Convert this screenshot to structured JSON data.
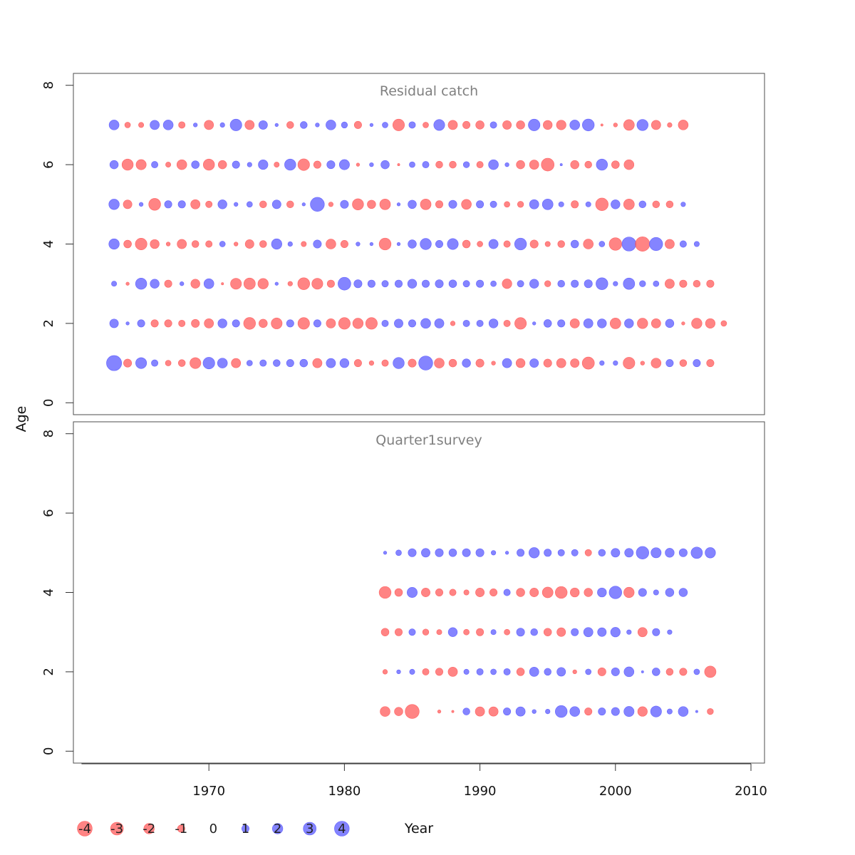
{
  "chart_data": {
    "type": "scatter",
    "subtype": "bubble",
    "xlabel": "Year",
    "ylabel": "Age",
    "x_ticks": [
      1970,
      1980,
      1990,
      2000,
      2010
    ],
    "y_ticks": [
      0,
      2,
      4,
      6,
      8
    ],
    "xlim": [
      1960,
      2011
    ],
    "ylim": [
      -0.3,
      8.3
    ],
    "colors": {
      "positive": "#5555ff",
      "negative": "#ff5555"
    },
    "legend": {
      "placement": "bottom",
      "values": [
        -4,
        -3,
        -2,
        -1,
        0,
        1,
        2,
        3,
        4
      ],
      "labels": [
        "-4",
        "-3",
        "-2",
        "-1",
        "0",
        "1",
        "2",
        "3",
        "4"
      ]
    },
    "panels": [
      {
        "title": "Residual catch",
        "years_start": 1963,
        "ages": [
          1,
          2,
          3,
          4,
          5,
          6,
          7
        ],
        "residuals": {
          "1": [
            4.2,
            -1.2,
            2.2,
            0.8,
            -0.6,
            -0.9,
            -2.2,
            2.5,
            1.8,
            -1.6,
            0.6,
            0.8,
            0.9,
            1.0,
            1.1,
            -1.6,
            1.6,
            1.5,
            -1.0,
            -0.4,
            -0.8,
            2.3,
            -1.2,
            3.6,
            -1.8,
            -1.1,
            1.3,
            -1.2,
            -0.3,
            1.6,
            -1.5,
            1.4,
            -1.2,
            -1.6,
            -1.4,
            -2.7,
            0.4,
            0.4,
            -2.5,
            -0.3,
            -1.8,
            1.0,
            -0.9,
            1.0,
            -1.0
          ],
          "2": [
            1.4,
            0.2,
            1.0,
            -1.0,
            -1.0,
            -0.8,
            -1.2,
            -1.6,
            1.5,
            1.0,
            -2.6,
            -1.3,
            -2.2,
            1.0,
            -2.5,
            1.0,
            -1.6,
            -2.5,
            -2.0,
            -2.5,
            0.8,
            1.4,
            1.0,
            1.8,
            1.6,
            -0.4,
            0.8,
            0.8,
            1.5,
            -0.8,
            -2.5,
            0.2,
            1.1,
            1.0,
            -1.6,
            1.6,
            1.5,
            -2.1,
            1.5,
            -2.0,
            -1.6,
            1.3,
            -0.2,
            -2.0,
            -1.7,
            -0.6
          ],
          "3": [
            0.5,
            -0.2,
            2.3,
            1.5,
            -1.0,
            0.3,
            -1.5,
            1.8,
            -0.1,
            -2.2,
            -2.4,
            -2.0,
            0.2,
            -0.4,
            -2.6,
            -2.2,
            -1.0,
            3.0,
            1.2,
            1.0,
            0.8,
            1.0,
            1.5,
            1.0,
            1.2,
            1.1,
            0.8,
            1.0,
            0.6,
            -1.7,
            0.8,
            1.5,
            -0.7,
            0.9,
            1.0,
            1.2,
            2.6,
            0.4,
            2.4,
            0.7,
            0.6,
            -1.6,
            -1.0,
            -0.9,
            -1.0
          ],
          "4": [
            2.0,
            -1.1,
            -2.5,
            -1.5,
            -0.3,
            -1.6,
            -0.9,
            -0.8,
            0.6,
            -0.3,
            -1.4,
            -0.9,
            2.0,
            0.4,
            -0.5,
            1.2,
            -1.8,
            -1.0,
            0.3,
            0.2,
            -2.6,
            0.2,
            1.3,
            2.3,
            1.0,
            2.2,
            -1.1,
            -0.6,
            1.6,
            -0.8,
            2.6,
            -1.2,
            -0.5,
            -0.9,
            1.1,
            -1.8,
            0.6,
            -2.9,
            3.6,
            -3.8,
            3.2,
            -1.6,
            0.8,
            0.5
          ],
          "5": [
            2.0,
            -1.4,
            0.3,
            -2.6,
            1.0,
            1.0,
            -1.6,
            -0.8,
            1.5,
            0.3,
            0.6,
            -0.9,
            1.4,
            -0.9,
            0.2,
            3.6,
            -0.4,
            1.2,
            -2.3,
            -1.3,
            -2.1,
            0.2,
            1.3,
            -2.1,
            -1.0,
            1.2,
            -1.8,
            1.0,
            0.8,
            -0.6,
            -0.7,
            1.6,
            2.1,
            0.5,
            -1.0,
            0.5,
            -2.9,
            1.5,
            -2.1,
            0.9,
            -0.9,
            -0.9,
            0.4
          ],
          "6": [
            1.3,
            -2.3,
            -1.9,
            0.8,
            -0.5,
            -1.8,
            1.1,
            -2.3,
            -1.3,
            1.0,
            0.4,
            1.7,
            -0.5,
            2.3,
            -2.5,
            -1.0,
            1.2,
            1.9,
            -0.2,
            0.3,
            1.3,
            -0.1,
            0.6,
            0.8,
            -0.9,
            -0.9,
            0.7,
            -0.8,
            1.8,
            0.3,
            -1.3,
            -1.6,
            -3.0,
            0.1,
            -1.3,
            -0.9,
            2.3,
            -1.1,
            -1.8
          ],
          "7": [
            1.8,
            -0.6,
            -0.5,
            1.6,
            1.8,
            -0.8,
            0.3,
            -1.6,
            0.4,
            2.5,
            -1.6,
            1.4,
            0.2,
            -0.9,
            0.9,
            0.3,
            1.8,
            0.7,
            -1.0,
            0.2,
            0.6,
            -2.5,
            0.8,
            -0.6,
            2.2,
            -1.6,
            -1.0,
            -1.3,
            0.8,
            -1.4,
            -1.3,
            2.5,
            -1.5,
            -1.7,
            1.8,
            2.6,
            -0.1,
            -0.3,
            -2.1,
            2.3,
            -1.6,
            -0.4,
            -1.8
          ]
        }
      },
      {
        "title": "Quarter1survey",
        "years_start": 1983,
        "ages": [
          1,
          2,
          3,
          4,
          5
        ],
        "residuals": {
          "1": [
            -1.8,
            -1.3,
            -3.6,
            0.0,
            -0.2,
            -0.1,
            0.9,
            -1.6,
            -1.6,
            1.0,
            1.6,
            0.3,
            0.4,
            2.6,
            1.8,
            -1.0,
            1.0,
            1.2,
            1.9,
            -1.7,
            2.2,
            0.5,
            1.8,
            0.1,
            -0.7
          ],
          "2": [
            -0.4,
            0.3,
            0.5,
            -0.8,
            -1.0,
            -1.6,
            0.5,
            0.8,
            0.6,
            0.8,
            -1.1,
            1.6,
            0.9,
            1.4,
            -0.3,
            0.6,
            -1.2,
            1.2,
            1.8,
            0.1,
            1.1,
            -0.9,
            -1.0,
            0.6,
            -2.4
          ],
          "3": [
            -1.1,
            -1.0,
            0.8,
            -0.7,
            -0.5,
            1.5,
            -0.6,
            -1.0,
            0.5,
            -0.6,
            1.2,
            0.9,
            -1.1,
            -1.4,
            1.0,
            1.6,
            1.4,
            1.7,
            0.4,
            -1.6,
            1.0,
            0.4
          ],
          "4": [
            -2.6,
            -1.1,
            1.9,
            -1.4,
            -1.0,
            -0.8,
            -0.5,
            -1.4,
            -1.0,
            0.8,
            -1.3,
            -1.4,
            -2.1,
            -2.6,
            -1.5,
            -1.3,
            1.5,
            2.9,
            -2.0,
            1.2,
            0.5,
            1.3,
            1.3
          ],
          "5": [
            0.2,
            0.6,
            1.2,
            1.4,
            1.2,
            1.1,
            1.2,
            1.2,
            0.4,
            0.2,
            1.0,
            2.0,
            1.0,
            0.8,
            0.8,
            -0.8,
            0.9,
            1.4,
            1.4,
            2.9,
            1.9,
            1.5,
            1.2,
            2.4,
            2.0
          ]
        }
      }
    ]
  }
}
